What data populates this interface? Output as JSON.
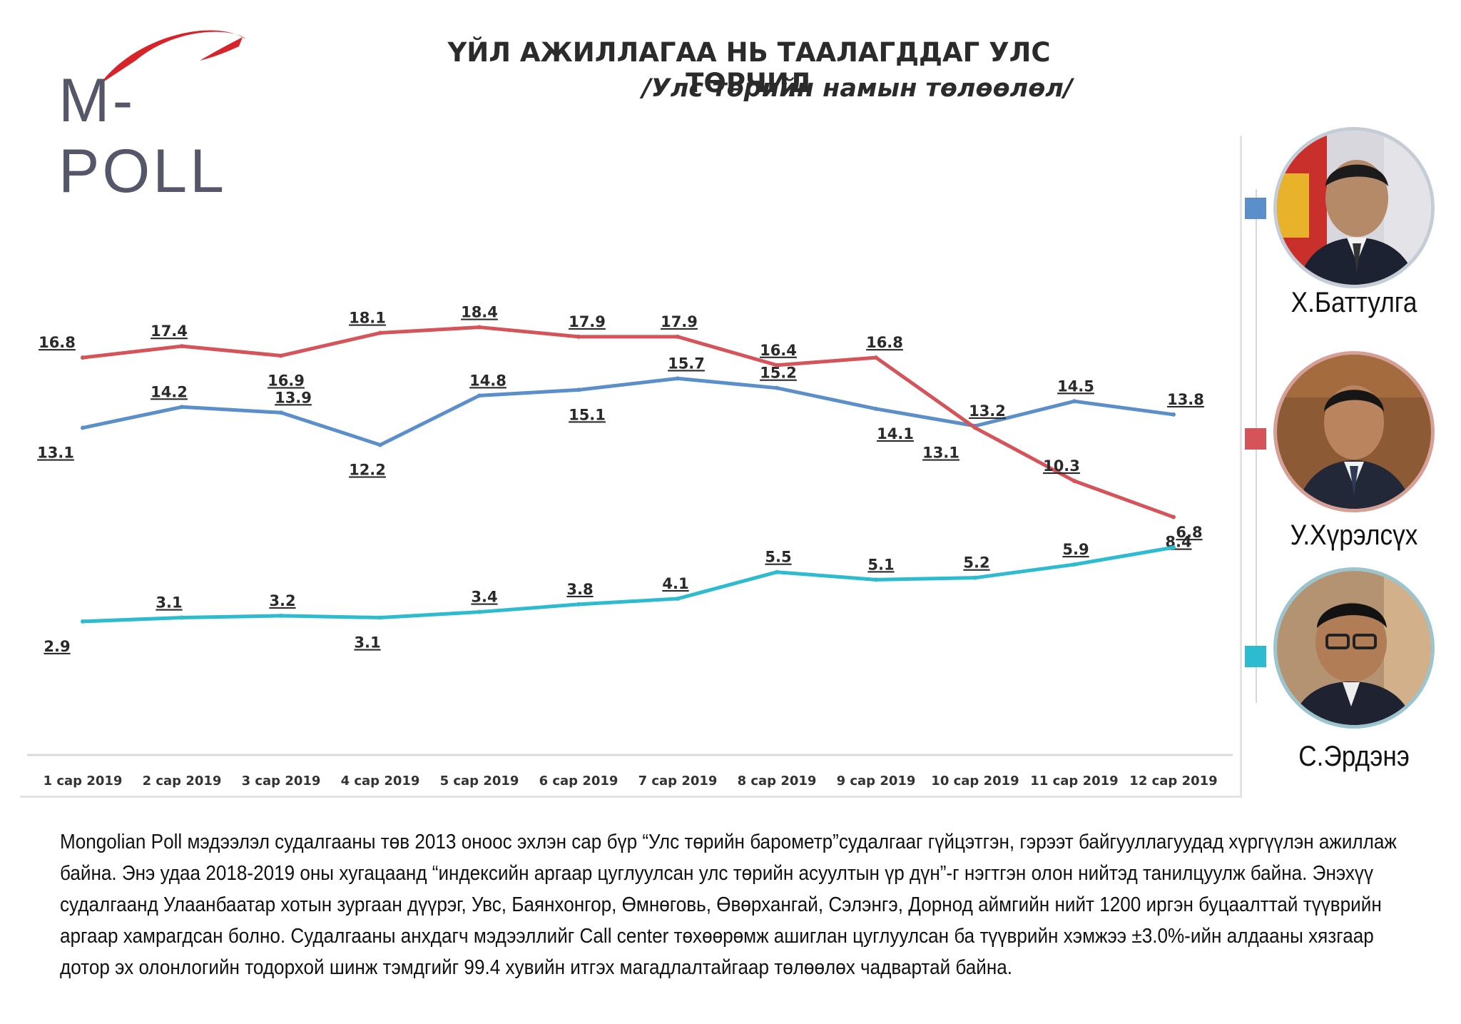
{
  "logo": {
    "text": "M-POLL"
  },
  "chart_data": {
    "type": "line",
    "title": "ҮЙЛ АЖИЛЛАГАА НЬ ТААЛАГДДАГ УЛС ТӨРЧИД",
    "subtitle": "/Улс төрийн намын төлөөлөл/",
    "categories": [
      "1 сар 2019",
      "2 сар 2019",
      "3 сар 2019",
      "4 сар 2019",
      "5 сар 2019",
      "6 сар 2019",
      "7 сар 2019",
      "8 сар 2019",
      "9 сар 2019",
      "10 сар 2019",
      "11 сар 2019",
      "12 сар 2019"
    ],
    "series": [
      {
        "name": "Х.Баттулга",
        "color": "#5b8fc9",
        "values": [
          13.1,
          14.2,
          13.9,
          12.2,
          14.8,
          15.1,
          15.7,
          15.2,
          14.1,
          13.2,
          14.5,
          13.8
        ]
      },
      {
        "name": "У.Хүрэлсүх",
        "color": "#d5545a",
        "values": [
          16.8,
          17.4,
          16.9,
          18.1,
          18.4,
          17.9,
          17.9,
          16.4,
          16.8,
          13.1,
          10.3,
          8.4
        ]
      },
      {
        "name": "С.Эрдэнэ",
        "color": "#2dbbd0",
        "values": [
          2.9,
          3.1,
          3.2,
          3.1,
          3.4,
          3.8,
          4.1,
          5.5,
          5.1,
          5.2,
          5.9,
          6.8
        ]
      }
    ],
    "xlabel": "",
    "ylabel": "",
    "grid": false,
    "legend": "right"
  },
  "legend": [
    {
      "name": "Х.Баттулга",
      "color": "#5b8fc9",
      "icon": "portrait-photo"
    },
    {
      "name": "У.Хүрэлсүх",
      "color": "#d5545a",
      "icon": "portrait-photo"
    },
    {
      "name": "С.Эрдэнэ",
      "color": "#2dbbd0",
      "icon": "portrait-photo"
    }
  ],
  "description": "Mongolian Poll мэдээлэл судалгааны төв 2013 оноос эхлэн сар бүр “Улс төрийн барометр”судалгааг гүйцэтгэн, гэрээт байгууллагуудад хүргүүлэн ажиллаж байна. Энэ удаа 2018-2019 оны хугацаанд “индексийн аргаар цуглуулсан улс төрийн асуултын үр дүн”-г нэгтгэн олон нийтэд танилцуулж байна.  Энэхүү судалгаанд Улаанбаатар хотын зургаан дүүрэг, Увс, Баянхонгор, Өмнөговь, Өвөрхангай, Сэлэнгэ, Дорнод аймгийн нийт 1200 иргэн буцаалттай түүврийн аргаар хамрагдсан болно. Судалгааны анхдагч мэдээллийг Call center төхөөрөмж ашиглан цуглуулсан ба түүврийн хэмжээ ±3.0%-ийн алдааны хязгаар дотор эх олонлогийн тодорхой шинж тэмдгийг 99.4 хувийн итгэх магадлалтайгаар төлөөлөх чадвартай байна."
}
